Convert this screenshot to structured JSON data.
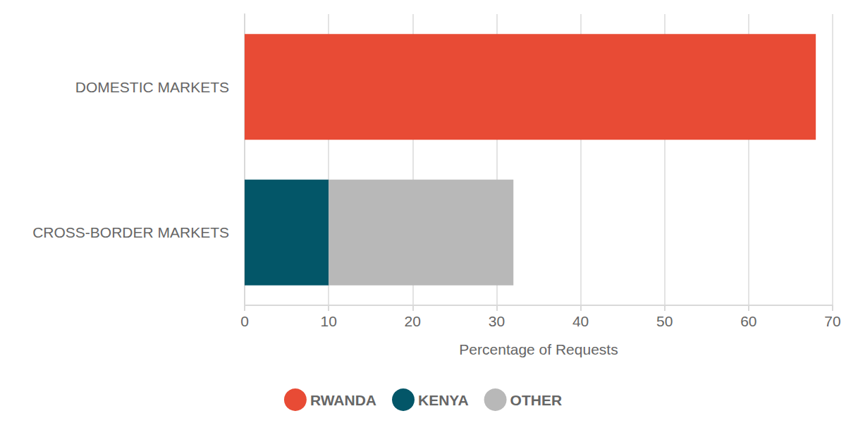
{
  "chart_data": {
    "type": "bar",
    "orientation": "horizontal",
    "stacked": true,
    "categories": [
      "DOMESTIC MARKETS",
      "CROSS-BORDER MARKETS"
    ],
    "series": [
      {
        "name": "RWANDA",
        "color": "#e84b35",
        "values": [
          68,
          null
        ]
      },
      {
        "name": "KENYA",
        "color": "#035668",
        "values": [
          null,
          10
        ]
      },
      {
        "name": "OTHER",
        "color": "#b8b8b8",
        "values": [
          null,
          22
        ]
      }
    ],
    "xlabel": "Percentage of Requests",
    "xlim": [
      0,
      70
    ],
    "xticks": [
      0,
      10,
      20,
      30,
      40,
      50,
      60,
      70
    ],
    "grid": true,
    "legend": "bottom"
  }
}
